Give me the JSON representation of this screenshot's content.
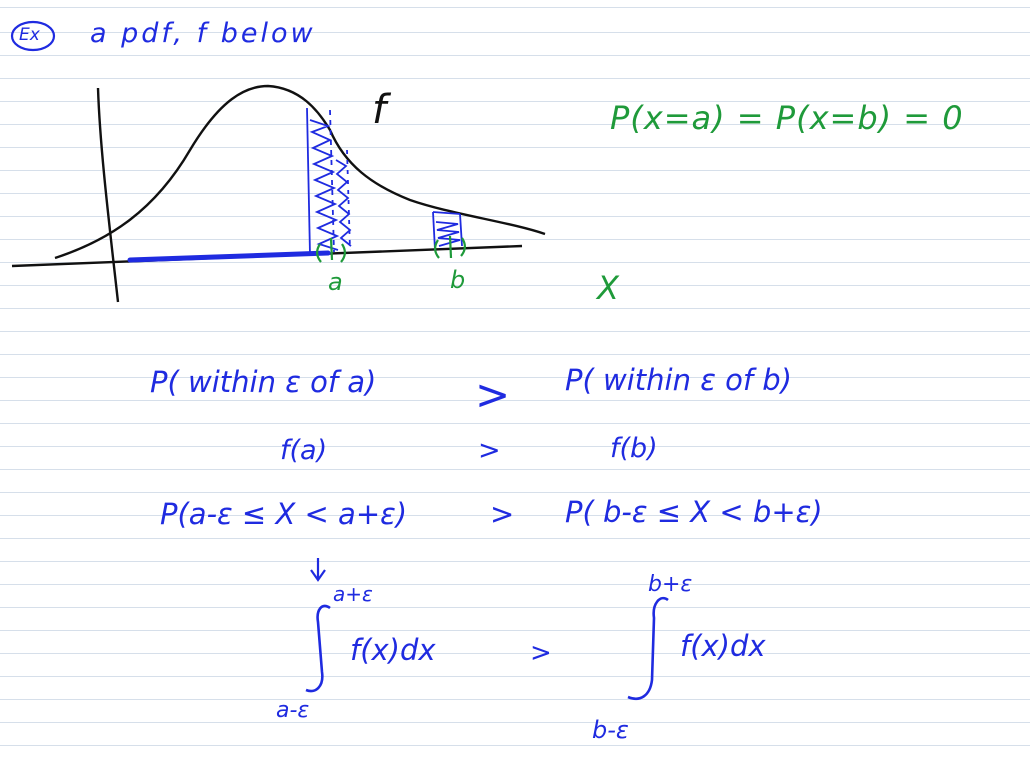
{
  "header": {
    "ex_label": "Ex",
    "title": "a pdf, f below"
  },
  "graph": {
    "curve_label": "f",
    "point_a": "a",
    "point_b": "b",
    "axis_var": "X"
  },
  "note": "P(x=a) = P(x=b) = 0",
  "rows": [
    {
      "left": "P( within ε of a)",
      "op": ">",
      "right": "P( within ε of b)"
    },
    {
      "left": "f(a)",
      "op": ">",
      "right": "f(b)"
    },
    {
      "left": "P(a-ε ≤ X  < a+ε)",
      "op": ">",
      "right": "P( b-ε ≤ X < b+ε)"
    }
  ],
  "integrals": {
    "left": {
      "upper": "a+ε",
      "integrand": "f(x)dx",
      "lower": "a-ε"
    },
    "op": ">",
    "right": {
      "upper": "b+ε",
      "integrand": "f(x)dx",
      "lower": "b-ε"
    }
  },
  "colors": {
    "black_ink": "#111111",
    "blue_ink": "#1f2be0",
    "green_ink": "#1f9a3a"
  }
}
